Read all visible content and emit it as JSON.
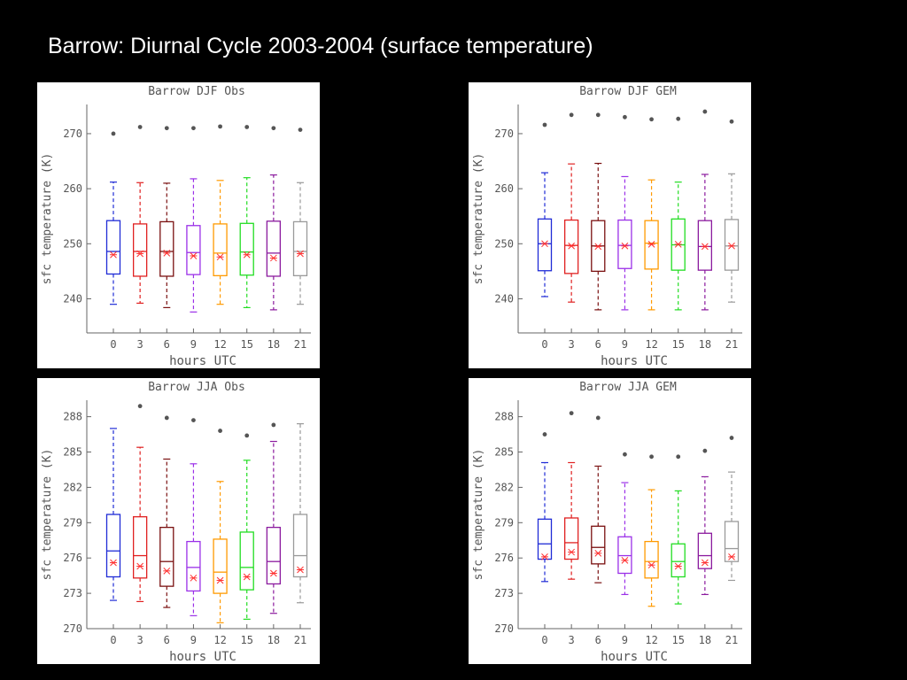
{
  "slide_title": "Barrow: Diurnal Cycle 2003-2004 (surface temperature)",
  "chart_data": [
    {
      "type": "box",
      "panel": "top-left",
      "title": "Barrow DJF Obs",
      "xlabel": "hours UTC",
      "ylabel": "sfc temperature (K)",
      "categories": [
        "0",
        "3",
        "6",
        "9",
        "12",
        "15",
        "18",
        "21"
      ],
      "yticks": [
        240,
        250,
        260,
        270
      ],
      "ylim": [
        233.8,
        275.3
      ],
      "colors": [
        "#1f2bd6",
        "#e02020",
        "#7a1010",
        "#9b30e8",
        "#ff9a00",
        "#22dd22",
        "#8b1a9e",
        "#9a9a9a"
      ],
      "series": [
        {
          "name": "0",
          "whisker_low": 239.0,
          "q1": 244.5,
          "median": 248.6,
          "q3": 254.2,
          "whisker_high": 261.2,
          "mean": 248.0,
          "outliers": [
            270.0
          ]
        },
        {
          "name": "3",
          "whisker_low": 239.2,
          "q1": 244.1,
          "median": 248.6,
          "q3": 253.6,
          "whisker_high": 261.1,
          "mean": 248.2,
          "outliers": [
            271.2
          ]
        },
        {
          "name": "6",
          "whisker_low": 238.4,
          "q1": 244.1,
          "median": 248.6,
          "q3": 254.0,
          "whisker_high": 261.0,
          "mean": 248.3,
          "outliers": [
            271.0
          ]
        },
        {
          "name": "9",
          "whisker_low": 237.6,
          "q1": 244.4,
          "median": 248.4,
          "q3": 253.3,
          "whisker_high": 261.8,
          "mean": 247.8,
          "outliers": [
            271.0
          ]
        },
        {
          "name": "12",
          "whisker_low": 239.0,
          "q1": 244.2,
          "median": 248.3,
          "q3": 253.6,
          "whisker_high": 261.5,
          "mean": 247.6,
          "outliers": [
            271.3
          ]
        },
        {
          "name": "15",
          "whisker_low": 238.4,
          "q1": 244.3,
          "median": 248.5,
          "q3": 253.7,
          "whisker_high": 262.0,
          "mean": 248.0,
          "outliers": [
            271.2
          ]
        },
        {
          "name": "18",
          "whisker_low": 238.0,
          "q1": 244.1,
          "median": 248.3,
          "q3": 254.1,
          "whisker_high": 262.5,
          "mean": 247.4,
          "outliers": [
            271.0
          ]
        },
        {
          "name": "21",
          "whisker_low": 239.0,
          "q1": 244.2,
          "median": 248.6,
          "q3": 254.0,
          "whisker_high": 261.1,
          "mean": 248.2,
          "outliers": [
            270.7
          ]
        }
      ]
    },
    {
      "type": "box",
      "panel": "top-right",
      "title": "Barrow DJF GEM",
      "xlabel": "hours UTC",
      "ylabel": "sfc temperature (K)",
      "categories": [
        "0",
        "3",
        "6",
        "9",
        "12",
        "15",
        "18",
        "21"
      ],
      "yticks": [
        240,
        250,
        260,
        270
      ],
      "ylim": [
        233.8,
        275.3
      ],
      "colors": [
        "#1f2bd6",
        "#e02020",
        "#7a1010",
        "#9b30e8",
        "#ff9a00",
        "#22dd22",
        "#8b1a9e",
        "#9a9a9a"
      ],
      "series": [
        {
          "name": "0",
          "whisker_low": 240.4,
          "q1": 245.1,
          "median": 250.0,
          "q3": 254.5,
          "whisker_high": 262.9,
          "mean": 250.0,
          "outliers": [
            271.6
          ]
        },
        {
          "name": "3",
          "whisker_low": 239.4,
          "q1": 244.6,
          "median": 249.7,
          "q3": 254.3,
          "whisker_high": 264.5,
          "mean": 249.6,
          "outliers": [
            273.4
          ]
        },
        {
          "name": "6",
          "whisker_low": 238.0,
          "q1": 245.0,
          "median": 249.6,
          "q3": 254.2,
          "whisker_high": 264.6,
          "mean": 249.5,
          "outliers": [
            273.4
          ]
        },
        {
          "name": "9",
          "whisker_low": 238.0,
          "q1": 245.5,
          "median": 249.7,
          "q3": 254.3,
          "whisker_high": 262.2,
          "mean": 249.6,
          "outliers": [
            273.0
          ]
        },
        {
          "name": "12",
          "whisker_low": 238.0,
          "q1": 245.4,
          "median": 250.1,
          "q3": 254.2,
          "whisker_high": 261.6,
          "mean": 249.9,
          "outliers": [
            272.6
          ]
        },
        {
          "name": "15",
          "whisker_low": 238.0,
          "q1": 245.2,
          "median": 249.8,
          "q3": 254.5,
          "whisker_high": 261.2,
          "mean": 249.9,
          "outliers": [
            272.7
          ]
        },
        {
          "name": "18",
          "whisker_low": 238.0,
          "q1": 245.2,
          "median": 249.5,
          "q3": 254.2,
          "whisker_high": 262.6,
          "mean": 249.5,
          "outliers": [
            274.0
          ]
        },
        {
          "name": "21",
          "whisker_low": 239.4,
          "q1": 245.2,
          "median": 249.6,
          "q3": 254.4,
          "whisker_high": 262.7,
          "mean": 249.6,
          "outliers": [
            272.2
          ]
        }
      ]
    },
    {
      "type": "box",
      "panel": "bottom-left",
      "title": "Barrow JJA Obs",
      "xlabel": "hours UTC",
      "ylabel": "sfc temperature (K)",
      "categories": [
        "0",
        "3",
        "6",
        "9",
        "12",
        "15",
        "18",
        "21"
      ],
      "yticks": [
        270,
        273,
        276,
        279,
        282,
        285,
        288
      ],
      "ylim": [
        270.0,
        289.4
      ],
      "colors": [
        "#1f2bd6",
        "#e02020",
        "#7a1010",
        "#9b30e8",
        "#ff9a00",
        "#22dd22",
        "#8b1a9e",
        "#9a9a9a"
      ],
      "series": [
        {
          "name": "0",
          "whisker_low": 272.4,
          "q1": 274.4,
          "median": 276.6,
          "q3": 279.7,
          "whisker_high": 287.0,
          "mean": 275.6,
          "outliers": []
        },
        {
          "name": "3",
          "whisker_low": 272.3,
          "q1": 274.3,
          "median": 276.2,
          "q3": 279.5,
          "whisker_high": 285.4,
          "mean": 275.3,
          "outliers": [
            288.9
          ]
        },
        {
          "name": "6",
          "whisker_low": 271.8,
          "q1": 273.6,
          "median": 275.7,
          "q3": 278.6,
          "whisker_high": 284.4,
          "mean": 274.9,
          "outliers": [
            287.9
          ]
        },
        {
          "name": "9",
          "whisker_low": 271.1,
          "q1": 273.2,
          "median": 275.2,
          "q3": 277.4,
          "whisker_high": 284.0,
          "mean": 274.3,
          "outliers": [
            287.7
          ]
        },
        {
          "name": "12",
          "whisker_low": 270.5,
          "q1": 273.0,
          "median": 274.8,
          "q3": 277.6,
          "whisker_high": 282.5,
          "mean": 274.1,
          "outliers": [
            286.8
          ]
        },
        {
          "name": "15",
          "whisker_low": 270.8,
          "q1": 273.3,
          "median": 275.2,
          "q3": 278.2,
          "whisker_high": 284.3,
          "mean": 274.4,
          "outliers": [
            286.4
          ]
        },
        {
          "name": "18",
          "whisker_low": 271.3,
          "q1": 273.8,
          "median": 275.7,
          "q3": 278.6,
          "whisker_high": 285.9,
          "mean": 274.7,
          "outliers": [
            287.3
          ]
        },
        {
          "name": "21",
          "whisker_low": 272.2,
          "q1": 274.4,
          "median": 276.2,
          "q3": 279.7,
          "whisker_high": 287.4,
          "mean": 275.0,
          "outliers": []
        }
      ]
    },
    {
      "type": "box",
      "panel": "bottom-right",
      "title": "Barrow JJA GEM",
      "xlabel": "hours UTC",
      "ylabel": "sfc temperature (K)",
      "categories": [
        "0",
        "3",
        "6",
        "9",
        "12",
        "15",
        "18",
        "21"
      ],
      "yticks": [
        270,
        273,
        276,
        279,
        282,
        285,
        288
      ],
      "ylim": [
        270.0,
        289.4
      ],
      "colors": [
        "#1f2bd6",
        "#e02020",
        "#7a1010",
        "#9b30e8",
        "#ff9a00",
        "#22dd22",
        "#8b1a9e",
        "#9a9a9a"
      ],
      "series": [
        {
          "name": "0",
          "whisker_low": 274.0,
          "q1": 275.9,
          "median": 277.2,
          "q3": 279.3,
          "whisker_high": 284.1,
          "mean": 276.1,
          "outliers": [
            286.5
          ]
        },
        {
          "name": "3",
          "whisker_low": 274.2,
          "q1": 275.9,
          "median": 277.3,
          "q3": 279.4,
          "whisker_high": 284.1,
          "mean": 276.5,
          "outliers": [
            288.3
          ]
        },
        {
          "name": "6",
          "whisker_low": 273.9,
          "q1": 275.5,
          "median": 276.9,
          "q3": 278.7,
          "whisker_high": 283.8,
          "mean": 276.4,
          "outliers": [
            287.9
          ]
        },
        {
          "name": "9",
          "whisker_low": 272.9,
          "q1": 274.7,
          "median": 276.2,
          "q3": 277.8,
          "whisker_high": 282.4,
          "mean": 275.8,
          "outliers": [
            284.8
          ]
        },
        {
          "name": "12",
          "whisker_low": 271.9,
          "q1": 274.3,
          "median": 275.7,
          "q3": 277.4,
          "whisker_high": 281.8,
          "mean": 275.4,
          "outliers": [
            284.6
          ]
        },
        {
          "name": "15",
          "whisker_low": 272.1,
          "q1": 274.4,
          "median": 275.7,
          "q3": 277.2,
          "whisker_high": 281.7,
          "mean": 275.3,
          "outliers": [
            284.6
          ]
        },
        {
          "name": "18",
          "whisker_low": 272.9,
          "q1": 275.1,
          "median": 276.2,
          "q3": 278.1,
          "whisker_high": 282.9,
          "mean": 275.6,
          "outliers": [
            285.1
          ]
        },
        {
          "name": "21",
          "whisker_low": 274.1,
          "q1": 275.7,
          "median": 276.8,
          "q3": 279.1,
          "whisker_high": 283.3,
          "mean": 276.1,
          "outliers": [
            286.2
          ]
        }
      ]
    }
  ]
}
